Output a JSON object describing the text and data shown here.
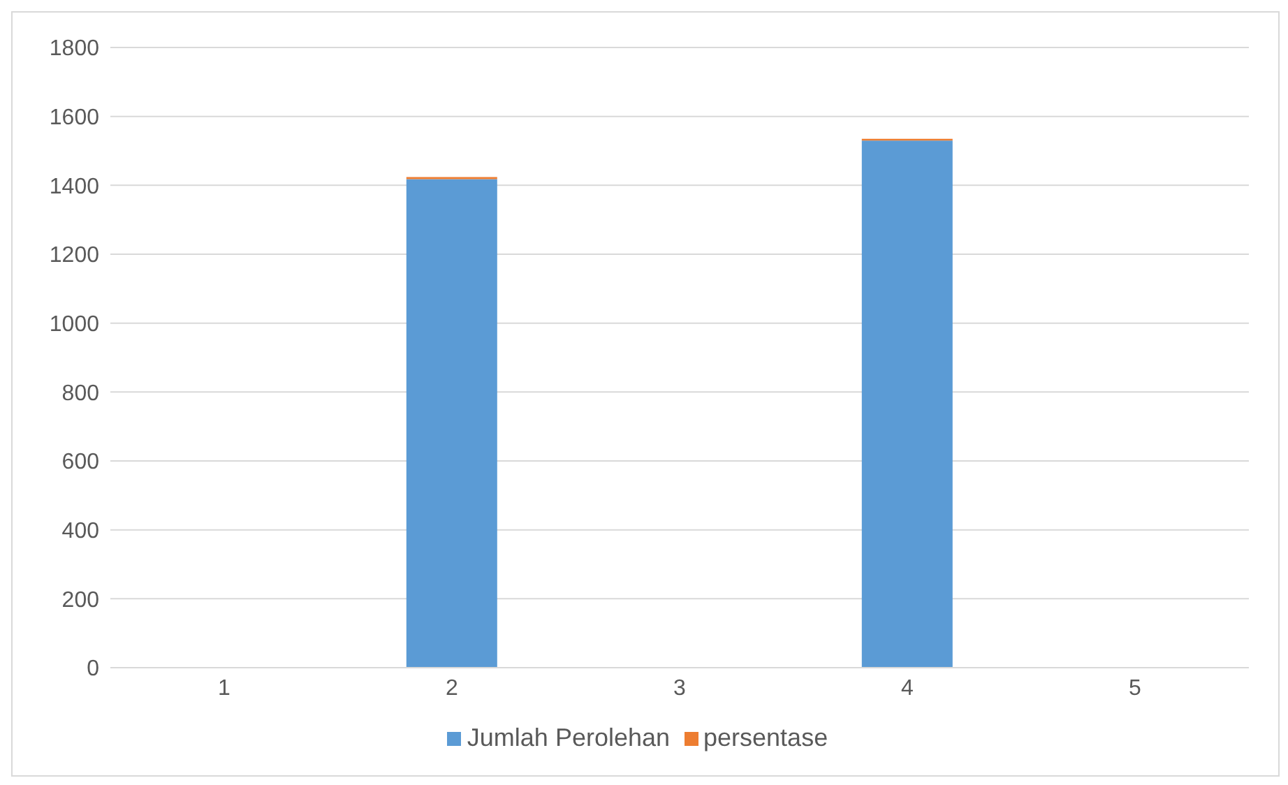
{
  "chart_data": {
    "type": "bar",
    "stacked": true,
    "categories": [
      "1",
      "2",
      "3",
      "4",
      "5"
    ],
    "series": [
      {
        "name": "Jumlah Perolehan",
        "color": "#5b9bd5",
        "values": [
          null,
          1418,
          null,
          1530,
          null
        ]
      },
      {
        "name": "persentase",
        "color": "#ed7d31",
        "values": [
          null,
          6,
          null,
          5,
          null
        ]
      }
    ],
    "ylim": [
      0,
      1800
    ],
    "yticks": [
      0,
      200,
      400,
      600,
      800,
      1000,
      1200,
      1400,
      1600,
      1800
    ],
    "grid": "y",
    "legend": "bottom"
  }
}
